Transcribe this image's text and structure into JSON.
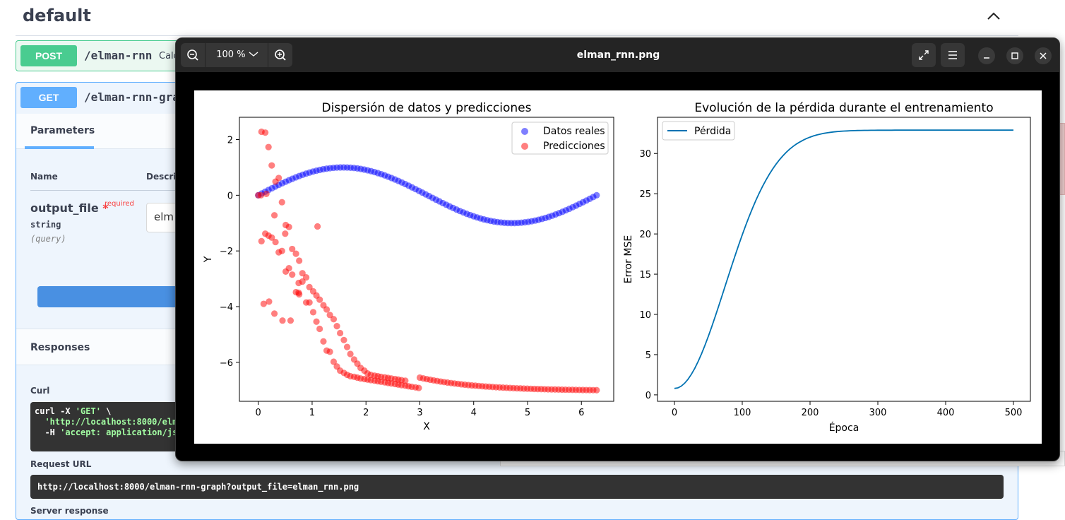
{
  "swagger": {
    "section_title": "default",
    "post": {
      "method": "POST",
      "path": "/elman-rnn",
      "desc": "Calc"
    },
    "get": {
      "method": "GET",
      "path": "/elman-rnn-gra"
    },
    "tab_parameters": "Parameters",
    "col_name": "Name",
    "col_desc": "Descrip",
    "param": {
      "name": "output_file",
      "star": "*",
      "required": "required",
      "type": "string",
      "in": "(query)",
      "value": "elm"
    },
    "responses": "Responses",
    "curl_label": "Curl",
    "curl_line1": "curl -X ",
    "curl_method": "'GET'",
    "curl_slash": " \\",
    "curl_line2": "'http://localhost:8000/elm",
    "curl_line3_pre": "-H ",
    "curl_line3": "'accept: application/js",
    "request_url_label": "Request URL",
    "request_url": "http://localhost:8000/elman-rnn-graph?output_file=elman_rnn.png",
    "server_response_label": "Server response"
  },
  "viewer": {
    "zoom": "100 %",
    "title": "elman_rnn.png",
    "colors": {
      "bar": "#242424",
      "button": "#363636"
    }
  },
  "chart_data": [
    {
      "type": "scatter",
      "title": "Dispersión de datos y predicciones",
      "xlabel": "X",
      "ylabel": "Y",
      "xlim": [
        -0.35,
        6.6
      ],
      "ylim": [
        -7.4,
        2.8
      ],
      "xticks": [
        0,
        1,
        2,
        3,
        4,
        5,
        6
      ],
      "yticks": [
        -6,
        -4,
        -2,
        0,
        2
      ],
      "legend": "top-right",
      "series": [
        {
          "name": "Datos reales",
          "color": "#0000ff",
          "x_start": 0,
          "x_end": 6.283,
          "count": 100,
          "function": "sin(x)"
        },
        {
          "name": "Predicciones",
          "color": "#ff0000",
          "x": [
            0.0,
            0.06,
            0.13,
            0.19,
            0.25,
            0.32,
            0.38,
            0.44,
            0.51,
            0.57,
            0.63,
            0.7,
            0.76,
            0.82,
            0.89,
            0.95,
            1.02,
            1.08,
            1.14,
            1.21,
            1.27,
            1.33,
            1.4,
            1.46,
            1.52,
            1.59,
            1.65,
            1.71,
            1.78,
            1.84,
            1.9,
            1.97,
            2.03,
            2.09,
            2.16,
            2.22,
            2.28,
            2.35,
            2.41,
            2.47,
            2.54,
            2.6,
            2.66,
            2.73,
            2.79,
            2.85,
            2.92,
            2.98,
            0.06,
            0.13,
            0.19,
            0.25,
            0.32,
            0.38,
            0.44,
            0.51,
            0.57,
            0.63,
            0.7,
            0.76,
            0.82,
            0.89,
            0.95,
            1.02,
            1.08,
            1.14,
            1.21,
            1.27,
            1.33,
            1.4,
            1.46,
            1.52,
            1.59,
            1.65,
            1.71,
            1.78,
            1.84,
            1.9,
            1.97,
            2.03,
            2.09,
            2.16,
            2.22,
            2.28,
            2.35,
            2.41,
            2.47,
            2.54,
            2.6,
            2.66,
            2.73,
            0.1,
            0.2,
            0.3,
            0.45,
            0.6,
            0.75,
            0.05,
            0.15,
            0.3,
            0.5,
            0.75,
            1.1
          ],
          "y": [
            0.0,
            -1.65,
            -1.38,
            -1.45,
            -1.52,
            -1.68,
            -2.05,
            -2.0,
            -2.74,
            -2.62,
            -2.85,
            -3.48,
            -3.56,
            -3.1,
            -3.85,
            -3.85,
            -4.2,
            -4.54,
            -4.8,
            -5.25,
            -5.58,
            -5.62,
            -5.98,
            -6.15,
            -6.3,
            -6.38,
            -6.45,
            -6.5,
            -6.52,
            -6.55,
            -6.58,
            -6.6,
            -6.62,
            -6.64,
            -6.66,
            -6.68,
            -6.7,
            -6.72,
            -6.74,
            -6.76,
            -6.78,
            -6.8,
            -6.82,
            -6.84,
            -6.86,
            -6.88,
            -6.9,
            -6.92,
            2.28,
            2.25,
            1.73,
            1.07,
            0.49,
            0.62,
            -0.25,
            -1.07,
            -1.14,
            -1.93,
            -2.1,
            -2.35,
            -2.8,
            -2.95,
            -3.3,
            -3.45,
            -3.6,
            -3.75,
            -3.95,
            -4.1,
            -4.3,
            -4.45,
            -4.7,
            -4.95,
            -5.2,
            -5.45,
            -5.7,
            -5.9,
            -6.05,
            -6.2,
            -6.3,
            -6.4,
            -6.45,
            -6.48,
            -6.5,
            -6.52,
            -6.54,
            -6.56,
            -6.58,
            -6.6,
            -6.62,
            -6.64,
            -6.66,
            -3.9,
            -3.82,
            -4.25,
            -4.5,
            -4.5,
            -3.5,
            0.0,
            0.05,
            -0.72,
            -1.38,
            -3.15,
            -1.12
          ],
          "tail_x_start": 3.0,
          "tail_x_end": 6.283,
          "tail_y_start": -6.55,
          "tail_y_end": -7.0
        }
      ]
    },
    {
      "type": "line",
      "title": "Evolución de la pérdida durante el entrenamiento",
      "xlabel": "Época",
      "ylabel": "Error MSE",
      "xlim": [
        -25,
        525
      ],
      "ylim": [
        -0.8,
        34.5
      ],
      "xticks": [
        0,
        100,
        200,
        300,
        400,
        500
      ],
      "yticks": [
        0,
        5,
        10,
        15,
        20,
        25,
        30
      ],
      "legend": "top-left",
      "series": [
        {
          "name": "Pérdida",
          "color": "#0072b2",
          "x_start": 0,
          "x_end": 500,
          "y_start": 0.8,
          "y_end": 32.9
        }
      ]
    }
  ]
}
